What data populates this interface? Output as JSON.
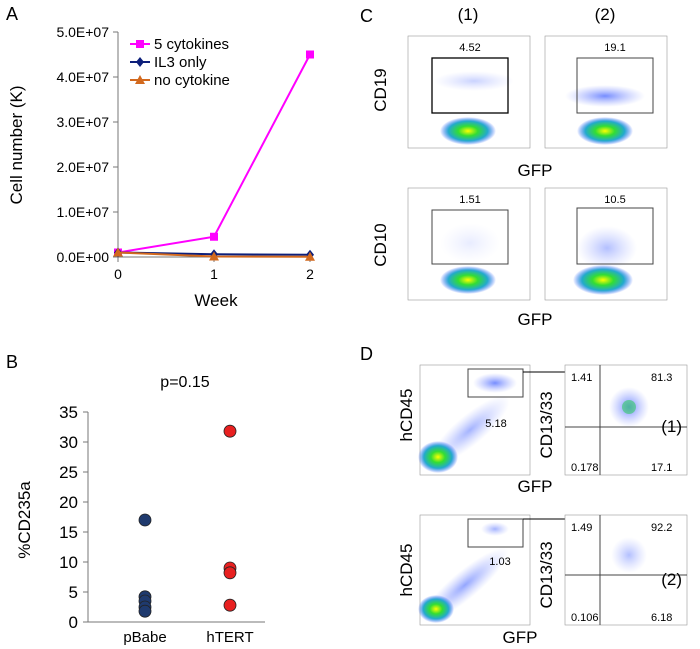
{
  "panel_letters": {
    "a": "A",
    "b": "B",
    "c": "C",
    "d": "D"
  },
  "chart_data": [
    {
      "panel": "A",
      "type": "line",
      "xlabel": "Week",
      "ylabel": "Cell number (K)",
      "x": [
        0,
        1,
        2
      ],
      "xticks": [
        "0",
        "1",
        "2"
      ],
      "ylim": [
        0,
        50000000
      ],
      "yticks": [
        0,
        10000000,
        20000000,
        30000000,
        40000000,
        50000000
      ],
      "ytick_labels": [
        "0.0E+00",
        "1.0E+07",
        "2.0E+07",
        "3.0E+07",
        "4.0E+07",
        "5.0E+07"
      ],
      "legend_position": "top-right",
      "series": [
        {
          "name": "5 cytokines",
          "color": "#ff00ff",
          "marker": "square",
          "values": [
            1000000,
            4500000,
            45000000
          ]
        },
        {
          "name": "IL3 only",
          "color": "#0d1f7a",
          "marker": "diamond",
          "values": [
            1000000,
            600000,
            500000
          ]
        },
        {
          "name": "no cytokine",
          "color": "#d2691e",
          "marker": "triangle",
          "values": [
            1000000,
            100000,
            50000
          ]
        }
      ]
    },
    {
      "panel": "B",
      "type": "scatter",
      "title": "p=0.15",
      "ylabel": "%CD235a",
      "categories": [
        "pBabe",
        "hTERT"
      ],
      "ylim": [
        0,
        35
      ],
      "yticks": [
        "0",
        "5",
        "10",
        "15",
        "20",
        "25",
        "30",
        "35"
      ],
      "groups": [
        {
          "category": "pBabe",
          "color": "#1f3a6e",
          "values": [
            17,
            4.2,
            3.5,
            2.5,
            1.8
          ]
        },
        {
          "category": "hTERT",
          "color": "#e82020",
          "values": [
            31.8,
            9,
            8.2,
            2.8
          ]
        }
      ]
    }
  ],
  "panel_c": {
    "col_labels": [
      "(1)",
      "(2)"
    ],
    "rows": [
      {
        "ylabel": "CD19",
        "xlabel": "GFP",
        "gates": [
          "4.52",
          "19.1"
        ]
      },
      {
        "ylabel": "CD10",
        "xlabel": "GFP",
        "gates": [
          "1.51",
          "10.5"
        ]
      }
    ]
  },
  "panel_d": {
    "rows": [
      {
        "label": "(1)",
        "left_ylabel": "hCD45",
        "left_xlabel": "GFP",
        "left_gate": "5.18",
        "right_ylabel": "CD13/33",
        "quadrants": {
          "ul": "1.41",
          "ur": "81.3",
          "ll": "0.178",
          "lr": "17.1"
        }
      },
      {
        "label": "(2)",
        "left_ylabel": "hCD45",
        "left_xlabel": "GFP",
        "left_gate": "1.03",
        "right_ylabel": "CD13/33",
        "quadrants": {
          "ul": "1.49",
          "ur": "92.2",
          "ll": "0.106",
          "lr": "6.18"
        }
      }
    ]
  }
}
